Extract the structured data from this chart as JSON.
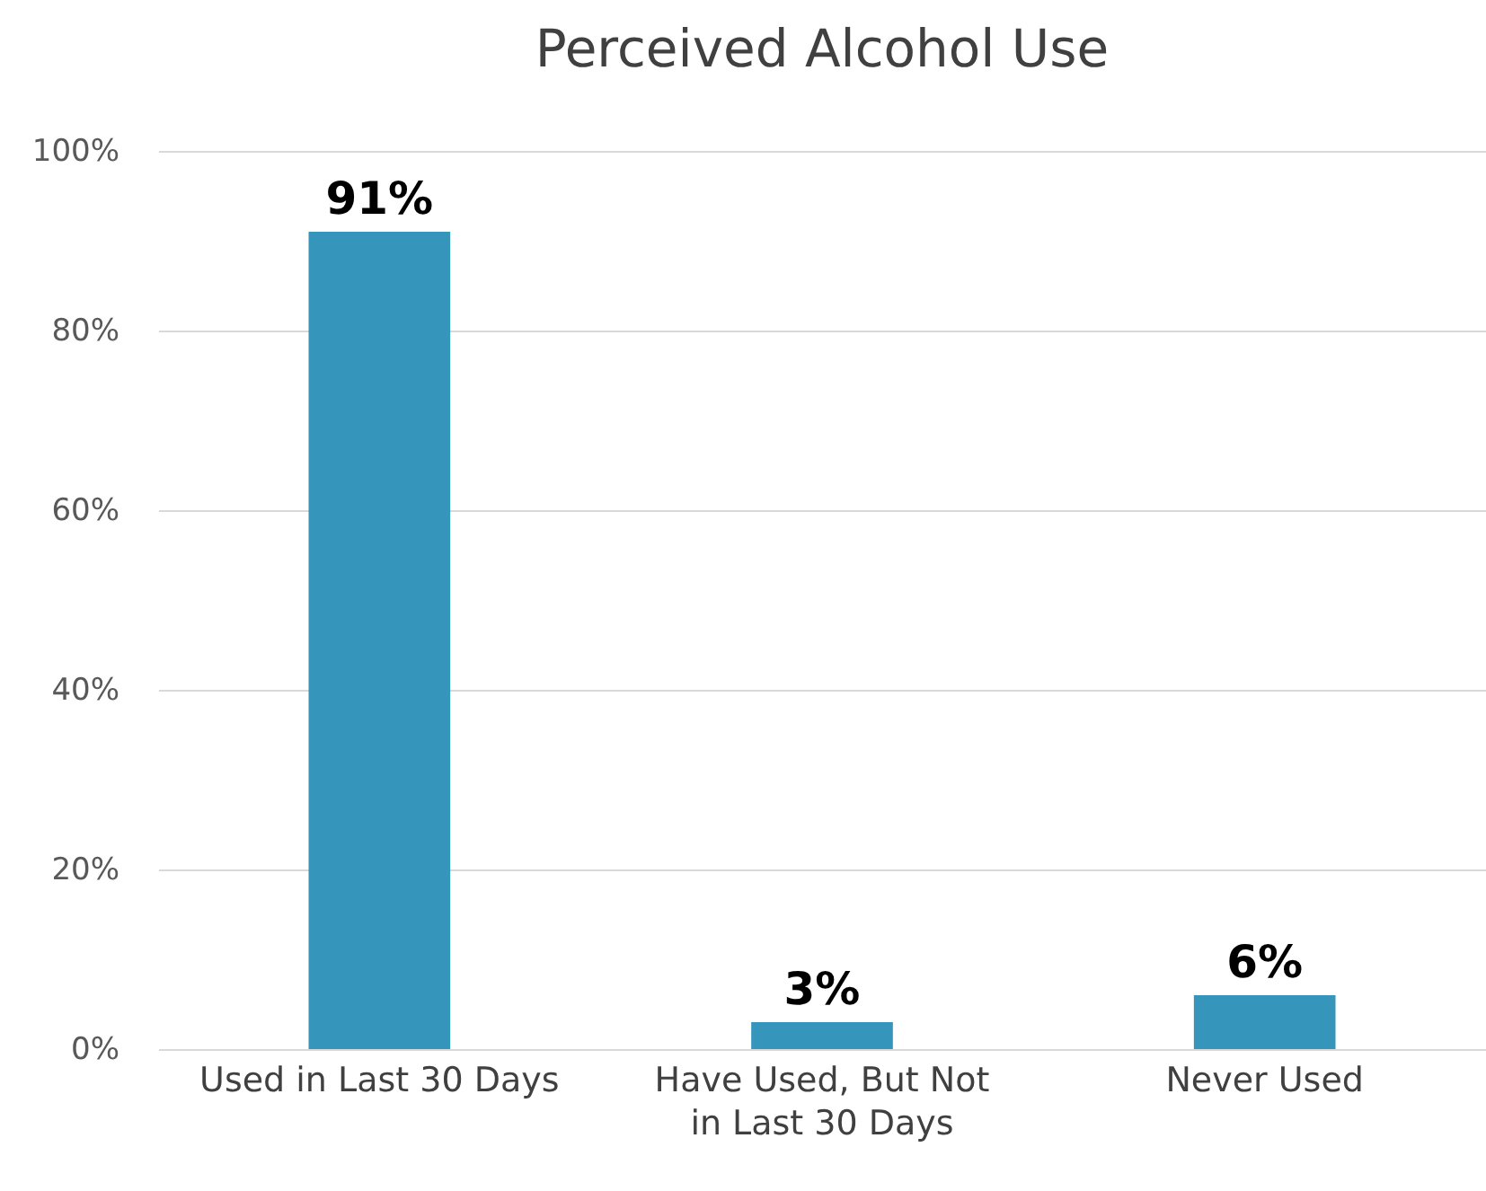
{
  "chart_data": {
    "type": "bar",
    "title": "Perceived Alcohol Use",
    "categories": [
      "Used in Last 30 Days",
      "Have Used, But Not in Last 30 Days",
      "Never Used"
    ],
    "values": [
      91,
      3,
      6
    ],
    "value_labels": [
      "91%",
      "3%",
      "6%"
    ],
    "color": "#3595bb",
    "ylim": [
      0,
      100
    ],
    "yticks": [
      {
        "value": 0,
        "label": "0%"
      },
      {
        "value": 20,
        "label": "20%"
      },
      {
        "value": 40,
        "label": "40%"
      },
      {
        "value": 60,
        "label": "60%"
      },
      {
        "value": 80,
        "label": "80%"
      },
      {
        "value": 100,
        "label": "100%"
      }
    ],
    "grid": "y"
  }
}
